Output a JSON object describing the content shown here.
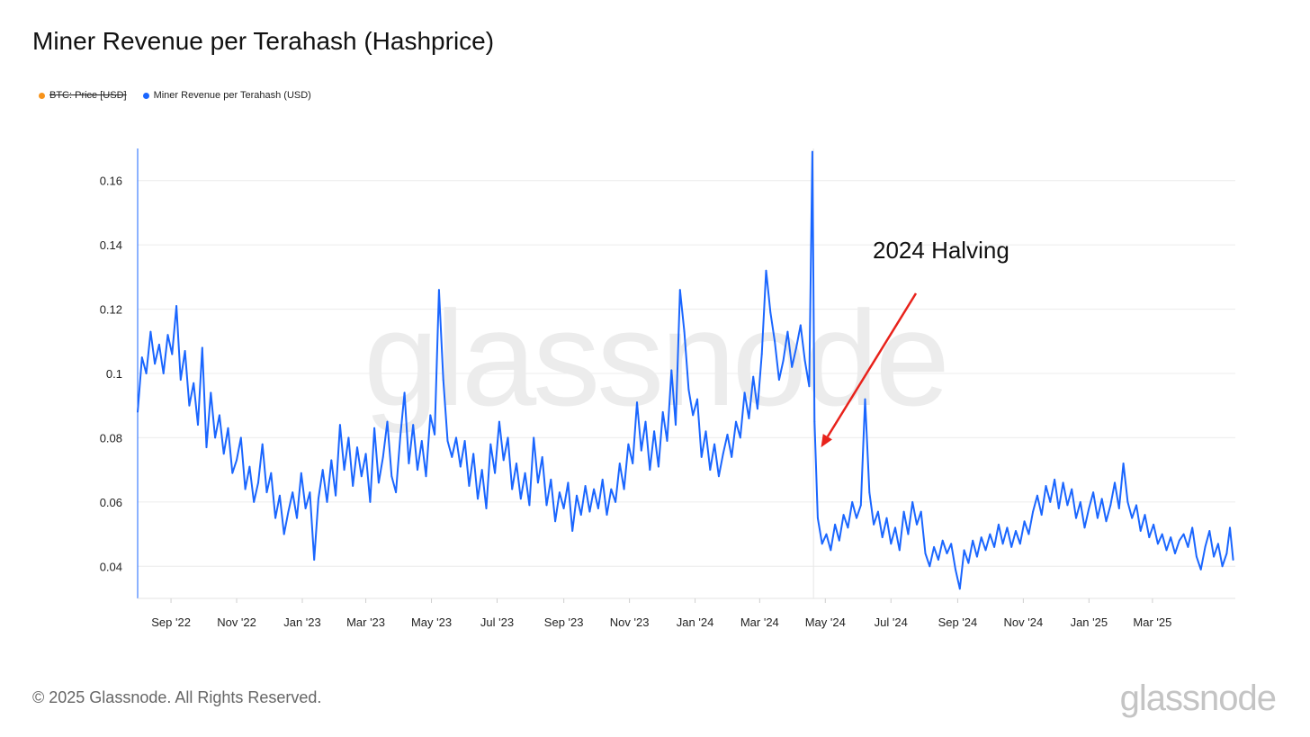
{
  "title": "Miner Revenue per Terahash (Hashprice)",
  "legend": [
    {
      "label": "BTC: Price [USD]",
      "color": "#f7931a",
      "disabled": true
    },
    {
      "label": "Miner Revenue per Terahash (USD)",
      "color": "#1a66ff",
      "disabled": false
    }
  ],
  "footer": "© 2025 Glassnode. All Rights Reserved.",
  "brand": "glassnode",
  "watermark": "glassnode",
  "chart_data": {
    "type": "line",
    "title": "Miner Revenue per Terahash (Hashprice)",
    "xlabel": "",
    "ylabel": "",
    "ylim": [
      0.03,
      0.17
    ],
    "xlim": [
      "2022-08-01",
      "2025-05-17"
    ],
    "grid": true,
    "legend_position": "top-left",
    "y_ticks": [
      0.04,
      0.06,
      0.08,
      0.1,
      0.12,
      0.14,
      0.16
    ],
    "y_tick_labels": [
      "0.04",
      "0.06",
      "0.08",
      "0.1",
      "0.12",
      "0.14",
      "0.16"
    ],
    "x_ticks": [
      "2022-09-01",
      "2022-11-01",
      "2023-01-01",
      "2023-03-01",
      "2023-05-01",
      "2023-07-01",
      "2023-09-01",
      "2023-11-01",
      "2024-01-01",
      "2024-03-01",
      "2024-05-01",
      "2024-07-01",
      "2024-09-01",
      "2024-11-01",
      "2025-01-01",
      "2025-03-01"
    ],
    "x_tick_labels": [
      "Sep '22",
      "Nov '22",
      "Jan '23",
      "Mar '23",
      "May '23",
      "Jul '23",
      "Sep '23",
      "Nov '23",
      "Jan '24",
      "Mar '24",
      "May '24",
      "Jul '24",
      "Sep '24",
      "Nov '24",
      "Jan '25",
      "Mar '25"
    ],
    "series": [
      {
        "name": "Miner Revenue per Terahash (USD)",
        "color": "#1a66ff",
        "points": [
          [
            "2022-08-01",
            0.088
          ],
          [
            "2022-08-05",
            0.105
          ],
          [
            "2022-08-09",
            0.1
          ],
          [
            "2022-08-13",
            0.113
          ],
          [
            "2022-08-17",
            0.103
          ],
          [
            "2022-08-21",
            0.109
          ],
          [
            "2022-08-25",
            0.1
          ],
          [
            "2022-08-29",
            0.112
          ],
          [
            "2022-09-02",
            0.106
          ],
          [
            "2022-09-06",
            0.121
          ],
          [
            "2022-09-10",
            0.098
          ],
          [
            "2022-09-14",
            0.107
          ],
          [
            "2022-09-18",
            0.09
          ],
          [
            "2022-09-22",
            0.097
          ],
          [
            "2022-09-26",
            0.084
          ],
          [
            "2022-09-30",
            0.108
          ],
          [
            "2022-10-04",
            0.077
          ],
          [
            "2022-10-08",
            0.094
          ],
          [
            "2022-10-12",
            0.08
          ],
          [
            "2022-10-16",
            0.087
          ],
          [
            "2022-10-20",
            0.075
          ],
          [
            "2022-10-24",
            0.083
          ],
          [
            "2022-10-28",
            0.069
          ],
          [
            "2022-11-01",
            0.073
          ],
          [
            "2022-11-05",
            0.08
          ],
          [
            "2022-11-09",
            0.064
          ],
          [
            "2022-11-13",
            0.071
          ],
          [
            "2022-11-17",
            0.06
          ],
          [
            "2022-11-21",
            0.066
          ],
          [
            "2022-11-25",
            0.078
          ],
          [
            "2022-11-29",
            0.063
          ],
          [
            "2022-12-03",
            0.069
          ],
          [
            "2022-12-07",
            0.055
          ],
          [
            "2022-12-11",
            0.062
          ],
          [
            "2022-12-15",
            0.05
          ],
          [
            "2022-12-19",
            0.057
          ],
          [
            "2022-12-23",
            0.063
          ],
          [
            "2022-12-27",
            0.055
          ],
          [
            "2022-12-31",
            0.069
          ],
          [
            "2023-01-04",
            0.058
          ],
          [
            "2023-01-08",
            0.063
          ],
          [
            "2023-01-12",
            0.042
          ],
          [
            "2023-01-16",
            0.061
          ],
          [
            "2023-01-20",
            0.07
          ],
          [
            "2023-01-24",
            0.06
          ],
          [
            "2023-01-28",
            0.073
          ],
          [
            "2023-02-01",
            0.062
          ],
          [
            "2023-02-05",
            0.084
          ],
          [
            "2023-02-09",
            0.07
          ],
          [
            "2023-02-13",
            0.08
          ],
          [
            "2023-02-17",
            0.065
          ],
          [
            "2023-02-21",
            0.077
          ],
          [
            "2023-02-25",
            0.068
          ],
          [
            "2023-03-01",
            0.075
          ],
          [
            "2023-03-05",
            0.06
          ],
          [
            "2023-03-09",
            0.083
          ],
          [
            "2023-03-13",
            0.066
          ],
          [
            "2023-03-17",
            0.074
          ],
          [
            "2023-03-21",
            0.085
          ],
          [
            "2023-03-25",
            0.068
          ],
          [
            "2023-03-29",
            0.063
          ],
          [
            "2023-04-02",
            0.08
          ],
          [
            "2023-04-06",
            0.094
          ],
          [
            "2023-04-10",
            0.072
          ],
          [
            "2023-04-14",
            0.084
          ],
          [
            "2023-04-18",
            0.07
          ],
          [
            "2023-04-22",
            0.079
          ],
          [
            "2023-04-26",
            0.068
          ],
          [
            "2023-04-30",
            0.087
          ],
          [
            "2023-05-04",
            0.081
          ],
          [
            "2023-05-08",
            0.126
          ],
          [
            "2023-05-12",
            0.098
          ],
          [
            "2023-05-16",
            0.079
          ],
          [
            "2023-05-20",
            0.074
          ],
          [
            "2023-05-24",
            0.08
          ],
          [
            "2023-05-28",
            0.071
          ],
          [
            "2023-06-01",
            0.079
          ],
          [
            "2023-06-05",
            0.065
          ],
          [
            "2023-06-09",
            0.075
          ],
          [
            "2023-06-13",
            0.061
          ],
          [
            "2023-06-17",
            0.07
          ],
          [
            "2023-06-21",
            0.058
          ],
          [
            "2023-06-25",
            0.078
          ],
          [
            "2023-06-29",
            0.069
          ],
          [
            "2023-07-03",
            0.085
          ],
          [
            "2023-07-07",
            0.073
          ],
          [
            "2023-07-11",
            0.08
          ],
          [
            "2023-07-15",
            0.064
          ],
          [
            "2023-07-19",
            0.072
          ],
          [
            "2023-07-23",
            0.061
          ],
          [
            "2023-07-27",
            0.069
          ],
          [
            "2023-07-31",
            0.059
          ],
          [
            "2023-08-04",
            0.08
          ],
          [
            "2023-08-08",
            0.066
          ],
          [
            "2023-08-12",
            0.074
          ],
          [
            "2023-08-16",
            0.059
          ],
          [
            "2023-08-20",
            0.067
          ],
          [
            "2023-08-24",
            0.054
          ],
          [
            "2023-08-28",
            0.063
          ],
          [
            "2023-09-01",
            0.058
          ],
          [
            "2023-09-05",
            0.066
          ],
          [
            "2023-09-09",
            0.051
          ],
          [
            "2023-09-13",
            0.062
          ],
          [
            "2023-09-17",
            0.056
          ],
          [
            "2023-09-21",
            0.065
          ],
          [
            "2023-09-25",
            0.057
          ],
          [
            "2023-09-29",
            0.064
          ],
          [
            "2023-10-03",
            0.058
          ],
          [
            "2023-10-07",
            0.067
          ],
          [
            "2023-10-11",
            0.056
          ],
          [
            "2023-10-15",
            0.064
          ],
          [
            "2023-10-19",
            0.06
          ],
          [
            "2023-10-23",
            0.072
          ],
          [
            "2023-10-27",
            0.064
          ],
          [
            "2023-10-31",
            0.078
          ],
          [
            "2023-11-04",
            0.072
          ],
          [
            "2023-11-08",
            0.091
          ],
          [
            "2023-11-12",
            0.076
          ],
          [
            "2023-11-16",
            0.085
          ],
          [
            "2023-11-20",
            0.07
          ],
          [
            "2023-11-24",
            0.082
          ],
          [
            "2023-11-28",
            0.071
          ],
          [
            "2023-12-02",
            0.088
          ],
          [
            "2023-12-06",
            0.079
          ],
          [
            "2023-12-10",
            0.101
          ],
          [
            "2023-12-14",
            0.084
          ],
          [
            "2023-12-18",
            0.126
          ],
          [
            "2023-12-22",
            0.113
          ],
          [
            "2023-12-26",
            0.095
          ],
          [
            "2023-12-30",
            0.087
          ],
          [
            "2024-01-03",
            0.092
          ],
          [
            "2024-01-07",
            0.074
          ],
          [
            "2024-01-11",
            0.082
          ],
          [
            "2024-01-15",
            0.07
          ],
          [
            "2024-01-19",
            0.078
          ],
          [
            "2024-01-23",
            0.068
          ],
          [
            "2024-01-27",
            0.075
          ],
          [
            "2024-01-31",
            0.081
          ],
          [
            "2024-02-04",
            0.074
          ],
          [
            "2024-02-08",
            0.085
          ],
          [
            "2024-02-12",
            0.08
          ],
          [
            "2024-02-16",
            0.094
          ],
          [
            "2024-02-20",
            0.086
          ],
          [
            "2024-02-24",
            0.099
          ],
          [
            "2024-02-28",
            0.089
          ],
          [
            "2024-03-03",
            0.106
          ],
          [
            "2024-03-07",
            0.132
          ],
          [
            "2024-03-11",
            0.119
          ],
          [
            "2024-03-15",
            0.11
          ],
          [
            "2024-03-19",
            0.098
          ],
          [
            "2024-03-23",
            0.104
          ],
          [
            "2024-03-27",
            0.113
          ],
          [
            "2024-03-31",
            0.102
          ],
          [
            "2024-04-04",
            0.108
          ],
          [
            "2024-04-08",
            0.115
          ],
          [
            "2024-04-12",
            0.104
          ],
          [
            "2024-04-16",
            0.096
          ],
          [
            "2024-04-19",
            0.169
          ],
          [
            "2024-04-21",
            0.085
          ],
          [
            "2024-04-24",
            0.055
          ],
          [
            "2024-04-28",
            0.047
          ],
          [
            "2024-05-02",
            0.05
          ],
          [
            "2024-05-06",
            0.045
          ],
          [
            "2024-05-10",
            0.053
          ],
          [
            "2024-05-14",
            0.048
          ],
          [
            "2024-05-18",
            0.056
          ],
          [
            "2024-05-22",
            0.052
          ],
          [
            "2024-05-26",
            0.06
          ],
          [
            "2024-05-30",
            0.055
          ],
          [
            "2024-06-03",
            0.059
          ],
          [
            "2024-06-07",
            0.092
          ],
          [
            "2024-06-11",
            0.063
          ],
          [
            "2024-06-15",
            0.053
          ],
          [
            "2024-06-19",
            0.057
          ],
          [
            "2024-06-23",
            0.049
          ],
          [
            "2024-06-27",
            0.055
          ],
          [
            "2024-07-01",
            0.047
          ],
          [
            "2024-07-05",
            0.052
          ],
          [
            "2024-07-09",
            0.045
          ],
          [
            "2024-07-13",
            0.057
          ],
          [
            "2024-07-17",
            0.05
          ],
          [
            "2024-07-21",
            0.06
          ],
          [
            "2024-07-25",
            0.053
          ],
          [
            "2024-07-29",
            0.057
          ],
          [
            "2024-08-02",
            0.044
          ],
          [
            "2024-08-06",
            0.04
          ],
          [
            "2024-08-10",
            0.046
          ],
          [
            "2024-08-14",
            0.042
          ],
          [
            "2024-08-18",
            0.048
          ],
          [
            "2024-08-22",
            0.044
          ],
          [
            "2024-08-26",
            0.047
          ],
          [
            "2024-08-30",
            0.039
          ],
          [
            "2024-09-03",
            0.033
          ],
          [
            "2024-09-07",
            0.045
          ],
          [
            "2024-09-11",
            0.041
          ],
          [
            "2024-09-15",
            0.048
          ],
          [
            "2024-09-19",
            0.043
          ],
          [
            "2024-09-23",
            0.049
          ],
          [
            "2024-09-27",
            0.045
          ],
          [
            "2024-10-01",
            0.05
          ],
          [
            "2024-10-05",
            0.046
          ],
          [
            "2024-10-09",
            0.053
          ],
          [
            "2024-10-13",
            0.047
          ],
          [
            "2024-10-17",
            0.052
          ],
          [
            "2024-10-21",
            0.046
          ],
          [
            "2024-10-25",
            0.051
          ],
          [
            "2024-10-29",
            0.047
          ],
          [
            "2024-11-02",
            0.054
          ],
          [
            "2024-11-06",
            0.05
          ],
          [
            "2024-11-10",
            0.057
          ],
          [
            "2024-11-14",
            0.062
          ],
          [
            "2024-11-18",
            0.056
          ],
          [
            "2024-11-22",
            0.065
          ],
          [
            "2024-11-26",
            0.06
          ],
          [
            "2024-11-30",
            0.067
          ],
          [
            "2024-12-04",
            0.058
          ],
          [
            "2024-12-08",
            0.066
          ],
          [
            "2024-12-12",
            0.059
          ],
          [
            "2024-12-16",
            0.064
          ],
          [
            "2024-12-20",
            0.055
          ],
          [
            "2024-12-24",
            0.06
          ],
          [
            "2024-12-28",
            0.052
          ],
          [
            "2025-01-01",
            0.058
          ],
          [
            "2025-01-05",
            0.063
          ],
          [
            "2025-01-09",
            0.055
          ],
          [
            "2025-01-13",
            0.061
          ],
          [
            "2025-01-17",
            0.054
          ],
          [
            "2025-01-21",
            0.059
          ],
          [
            "2025-01-25",
            0.066
          ],
          [
            "2025-01-29",
            0.058
          ],
          [
            "2025-02-02",
            0.072
          ],
          [
            "2025-02-06",
            0.06
          ],
          [
            "2025-02-10",
            0.055
          ],
          [
            "2025-02-14",
            0.059
          ],
          [
            "2025-02-18",
            0.051
          ],
          [
            "2025-02-22",
            0.056
          ],
          [
            "2025-02-26",
            0.049
          ],
          [
            "2025-03-02",
            0.053
          ],
          [
            "2025-03-06",
            0.047
          ],
          [
            "2025-03-10",
            0.05
          ],
          [
            "2025-03-14",
            0.045
          ],
          [
            "2025-03-18",
            0.049
          ],
          [
            "2025-03-22",
            0.044
          ],
          [
            "2025-03-26",
            0.048
          ],
          [
            "2025-03-30",
            0.05
          ],
          [
            "2025-04-03",
            0.046
          ],
          [
            "2025-04-07",
            0.052
          ],
          [
            "2025-04-11",
            0.043
          ],
          [
            "2025-04-15",
            0.039
          ],
          [
            "2025-04-19",
            0.046
          ],
          [
            "2025-04-23",
            0.051
          ],
          [
            "2025-04-27",
            0.043
          ],
          [
            "2025-05-01",
            0.047
          ],
          [
            "2025-05-05",
            0.04
          ],
          [
            "2025-05-09",
            0.044
          ],
          [
            "2025-05-12",
            0.052
          ],
          [
            "2025-05-15",
            0.042
          ]
        ]
      }
    ],
    "annotations": [
      {
        "text": "2024 Halving",
        "arrow_to": [
          "2024-04-27",
          0.077
        ],
        "color": "#e8221b"
      }
    ]
  }
}
